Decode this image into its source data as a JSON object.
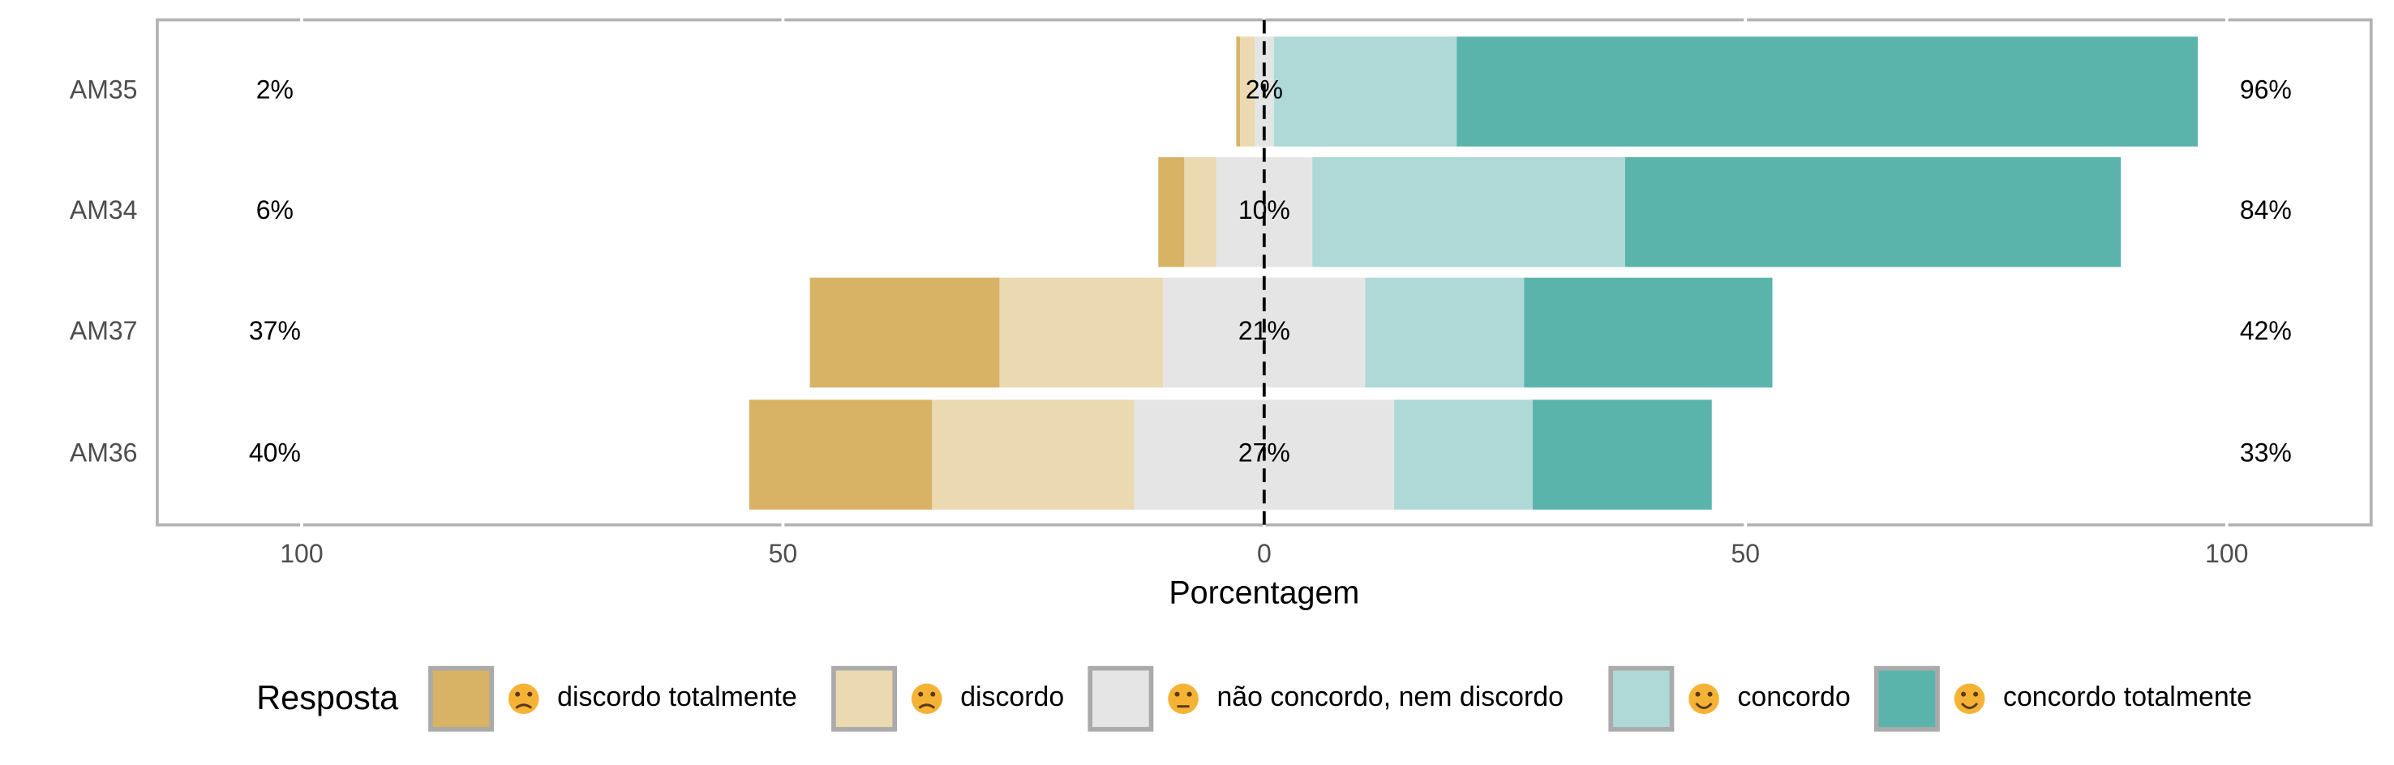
{
  "chart_data": {
    "type": "diverging-bar",
    "categories": [
      "AM35",
      "AM34",
      "AM37",
      "AM36"
    ],
    "series": [
      {
        "name": "discordo totalmente",
        "color": "#d8b365",
        "values": [
          0.4,
          2.7,
          19.7,
          19
        ]
      },
      {
        "name": "discordo",
        "color": "#ebd9b2",
        "values": [
          1.5,
          3.3,
          17,
          21
        ]
      },
      {
        "name": "não concordo, nem discordo",
        "color": "#e5e5e5",
        "values": [
          2,
          10,
          21,
          27
        ]
      },
      {
        "name": "concordo",
        "color": "#aed9d6",
        "values": [
          19,
          32.5,
          16.5,
          14.4
        ]
      },
      {
        "name": "concordo totalmente",
        "color": "#5ab4ac",
        "values": [
          77,
          51.5,
          25.8,
          18.6
        ]
      }
    ],
    "low_labels": [
      "2%",
      "6%",
      "37%",
      "40%"
    ],
    "neutral_labels": [
      "2%",
      "10%",
      "21%",
      "27%"
    ],
    "high_labels": [
      "96%",
      "84%",
      "42%",
      "33%"
    ],
    "xlim": [
      -115,
      115
    ],
    "xticks": [
      {
        "value": -100,
        "label": "100"
      },
      {
        "value": -50,
        "label": "50"
      },
      0,
      50,
      100
    ],
    "xlabel": "Porcentagem",
    "legend_title": "Resposta",
    "legend_position": "bottom",
    "grid": true
  }
}
